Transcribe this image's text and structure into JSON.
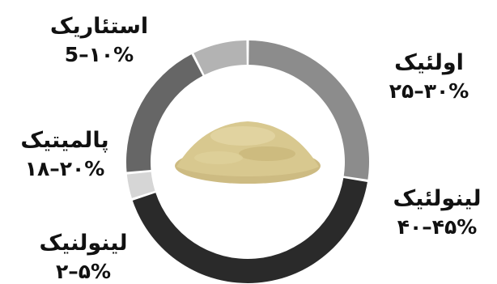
{
  "chart_data": {
    "type": "pie",
    "title": "",
    "legend": "none",
    "slices": [
      {
        "name": "اولئیک",
        "range": "۲۵–۳۰%",
        "value": 27.5,
        "color": "#8c8c8c"
      },
      {
        "name": "لینولئیک",
        "range": "۴۰–۴۵%",
        "value": 42.5,
        "color": "#2a2a2a"
      },
      {
        "name": "لینولنیک",
        "range": "۲–۵%",
        "value": 3.5,
        "color": "#d6d6d6"
      },
      {
        "name": "پالمیتیک",
        "range": "۱۸–۲۰%",
        "value": 19,
        "color": "#666666"
      },
      {
        "name": "استئاریک",
        "range": "5–۱۰%",
        "value": 7.5,
        "color": "#b3b3b3"
      }
    ]
  },
  "center_image": {
    "icon": "powder-pile-icon",
    "color": "#d2c189"
  }
}
